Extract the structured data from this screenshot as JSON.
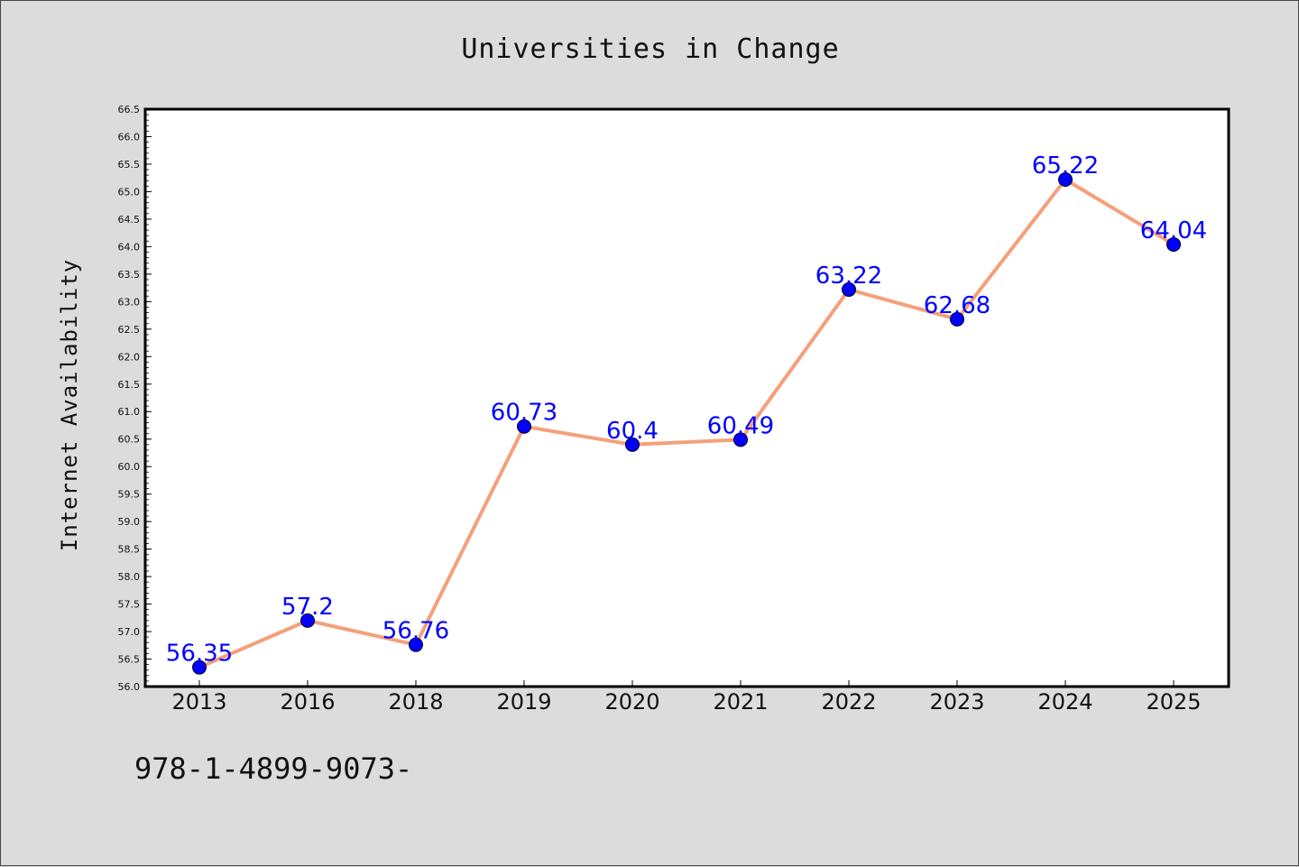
{
  "chart_data": {
    "type": "line",
    "title": "Universities in Change",
    "xlabel": "",
    "ylabel": "Internet Availability",
    "categories": [
      "2013",
      "2016",
      "2018",
      "2019",
      "2020",
      "2021",
      "2022",
      "2023",
      "2024",
      "2025"
    ],
    "series": [
      {
        "values": [
          56.35,
          57.2,
          56.76,
          60.73,
          60.4,
          60.49,
          63.22,
          62.68,
          65.22,
          64.04
        ],
        "line_color": "#f4a07a",
        "marker_color": "#0000ff"
      }
    ],
    "data_labels": [
      "56.35",
      "57.2",
      "56.76",
      "60.73",
      "60.4",
      "60.49",
      "63.22",
      "62.68",
      "65.22",
      "64.04"
    ],
    "ylim": [
      56.0,
      66.5
    ],
    "yticks": [
      "56.0",
      "56.5",
      "57.0",
      "57.5",
      "58.0",
      "58.5",
      "59.0",
      "59.5",
      "60.0",
      "60.5",
      "61.0",
      "61.5",
      "62.0",
      "62.5",
      "63.0",
      "63.5",
      "64.0",
      "64.5",
      "65.0",
      "65.5",
      "66.0",
      "66.5"
    ],
    "grid": false,
    "background": "#dcdcdc",
    "plot_background": "#ffffff"
  },
  "footer": {
    "code": "978-1-4899-9073-"
  }
}
